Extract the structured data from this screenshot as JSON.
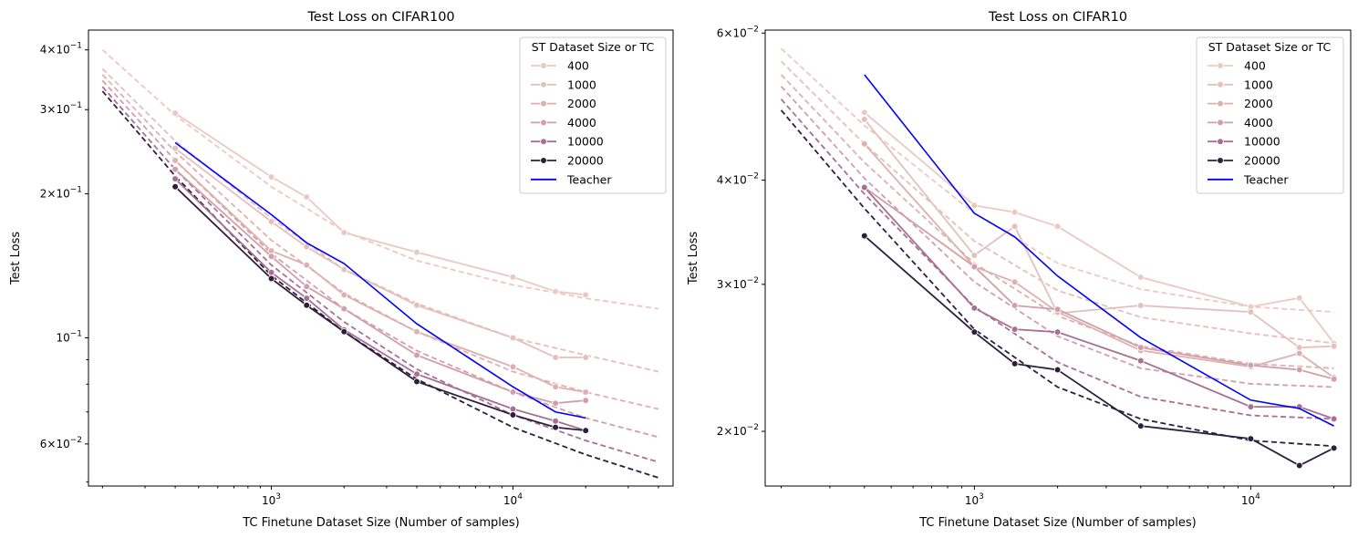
{
  "chart_data": [
    {
      "type": "line",
      "title": "Test Loss on CIFAR100",
      "xlabel": "TC Finetune Dataset Size (Number of samples)",
      "ylabel": "Test Loss",
      "xscale": "log",
      "yscale": "log",
      "xlim": [
        175,
        46000
      ],
      "ylim": [
        0.049,
        0.44
      ],
      "xticks": [
        {
          "value": 1000,
          "base": "10",
          "exp": "3"
        },
        {
          "value": 10000,
          "base": "10",
          "exp": "4"
        }
      ],
      "yticks": [
        {
          "value": 0.06,
          "mant": "6",
          "exp": "−2"
        },
        {
          "value": 0.1,
          "mant": "",
          "exp": "−1"
        },
        {
          "value": 0.2,
          "mant": "2",
          "exp": "−1"
        },
        {
          "value": 0.3,
          "mant": "3",
          "exp": "−1"
        },
        {
          "value": 0.4,
          "mant": "4",
          "exp": "−1"
        }
      ],
      "yticks_minor": [
        0.05,
        0.07,
        0.08,
        0.09
      ],
      "legend": {
        "title": "ST Dataset Size or TC",
        "loc": "upper right",
        "entries": [
          "400",
          "1000",
          "2000",
          "4000",
          "10000",
          "20000",
          "Teacher"
        ]
      },
      "series": [
        {
          "name": "400",
          "color": "#ebc9c2",
          "x": [
            400,
            1000,
            1400,
            2000,
            4000,
            10000,
            15000,
            20000
          ],
          "y": [
            0.295,
            0.217,
            0.197,
            0.166,
            0.151,
            0.134,
            0.125,
            0.123
          ],
          "fit_x": [
            200,
            400,
            1000,
            2000,
            4000,
            10000,
            20000,
            40000
          ],
          "fit_y": [
            0.4,
            0.292,
            0.207,
            0.167,
            0.145,
            0.129,
            0.121,
            0.115
          ]
        },
        {
          "name": "1000",
          "color": "#e5bfbb",
          "x": [
            400,
            1000,
            1400,
            2000,
            4000,
            10000,
            15000,
            20000
          ],
          "y": [
            0.249,
            0.175,
            0.155,
            0.139,
            0.117,
            0.1,
            0.091,
            0.091
          ],
          "fit_x": [
            200,
            400,
            1000,
            2000,
            4000,
            10000,
            20000,
            40000
          ],
          "fit_y": [
            0.365,
            0.258,
            0.178,
            0.139,
            0.118,
            0.1,
            0.092,
            0.085
          ]
        },
        {
          "name": "2000",
          "color": "#deb0b0",
          "x": [
            400,
            1000,
            1400,
            2000,
            4000,
            10000,
            15000,
            20000
          ],
          "y": [
            0.235,
            0.152,
            0.142,
            0.123,
            0.103,
            0.087,
            0.079,
            0.077
          ],
          "fit_x": [
            200,
            400,
            1000,
            2000,
            4000,
            10000,
            20000,
            40000
          ],
          "fit_y": [
            0.355,
            0.245,
            0.16,
            0.124,
            0.103,
            0.085,
            0.077,
            0.071
          ]
        },
        {
          "name": "4000",
          "color": "#d29fa8",
          "x": [
            400,
            1000,
            1400,
            2000,
            4000,
            10000,
            15000,
            20000
          ],
          "y": [
            0.225,
            0.148,
            0.128,
            0.115,
            0.092,
            0.077,
            0.073,
            0.074
          ],
          "fit_x": [
            200,
            400,
            1000,
            2000,
            4000,
            10000,
            20000,
            40000
          ],
          "fit_y": [
            0.345,
            0.235,
            0.15,
            0.115,
            0.094,
            0.077,
            0.068,
            0.062
          ]
        },
        {
          "name": "10000",
          "color": "#a86f92",
          "x": [
            400,
            1000,
            1400,
            2000,
            4000,
            10000,
            15000,
            20000
          ],
          "y": [
            0.215,
            0.137,
            0.121,
            0.104,
            0.084,
            0.071,
            0.067,
            0.064
          ],
          "fit_x": [
            200,
            400,
            1000,
            2000,
            4000,
            10000,
            20000,
            40000
          ],
          "fit_y": [
            0.335,
            0.225,
            0.142,
            0.108,
            0.086,
            0.069,
            0.061,
            0.055
          ]
        },
        {
          "name": "20000",
          "color": "#2d1e3e",
          "x": [
            400,
            1000,
            1400,
            2000,
            4000,
            10000,
            15000,
            20000
          ],
          "y": [
            0.207,
            0.133,
            0.117,
            0.103,
            0.081,
            0.069,
            0.065,
            0.064
          ],
          "fit_x": [
            200,
            400,
            1000,
            2000,
            4000,
            10000,
            20000,
            40000
          ],
          "fit_y": [
            0.328,
            0.218,
            0.135,
            0.103,
            0.082,
            0.065,
            0.057,
            0.051
          ]
        },
        {
          "name": "Teacher",
          "color": "#0000ff",
          "markers": false,
          "x": [
            400,
            1000,
            1400,
            2000,
            4000,
            10000,
            15000,
            20000
          ],
          "y": [
            0.256,
            0.181,
            0.158,
            0.143,
            0.107,
            0.079,
            0.07,
            0.068
          ]
        }
      ]
    },
    {
      "type": "line",
      "title": "Test Loss on CIFAR10",
      "xlabel": "TC Finetune Dataset Size (Number of samples)",
      "ylabel": "Test Loss",
      "xscale": "log",
      "yscale": "log",
      "xlim": [
        175,
        23000
      ],
      "ylim": [
        0.0172,
        0.0605
      ],
      "xticks": [
        {
          "value": 1000,
          "base": "10",
          "exp": "3"
        },
        {
          "value": 10000,
          "base": "10",
          "exp": "4"
        }
      ],
      "yticks": [
        {
          "value": 0.02,
          "mant": "2",
          "exp": "−2"
        },
        {
          "value": 0.03,
          "mant": "3",
          "exp": "−2"
        },
        {
          "value": 0.04,
          "mant": "4",
          "exp": "−2"
        },
        {
          "value": 0.06,
          "mant": "6",
          "exp": "−2"
        }
      ],
      "yticks_minor": [],
      "legend": {
        "title": "ST Dataset Size or TC",
        "loc": "upper right",
        "entries": [
          "400",
          "1000",
          "2000",
          "4000",
          "10000",
          "20000",
          "Teacher"
        ]
      },
      "series": [
        {
          "name": "400",
          "color": "#ebc9c2",
          "x": [
            400,
            1000,
            1400,
            2000,
            4000,
            10000,
            15000,
            20000
          ],
          "y": [
            0.0482,
            0.0373,
            0.0366,
            0.0352,
            0.0306,
            0.0282,
            0.0289,
            0.0255
          ],
          "fit_x": [
            200,
            400,
            1000,
            2000,
            4000,
            10000,
            20000
          ],
          "fit_y": [
            0.0575,
            0.0465,
            0.0365,
            0.0318,
            0.0296,
            0.0282,
            0.0278
          ]
        },
        {
          "name": "1000",
          "color": "#e5bfbb",
          "x": [
            400,
            1000,
            1400,
            2000,
            4000,
            10000,
            15000,
            20000
          ],
          "y": [
            0.0473,
            0.0325,
            0.0352,
            0.0277,
            0.0283,
            0.0278,
            0.0252,
            0.0253
          ],
          "fit_x": [
            200,
            400,
            1000,
            2000,
            4000,
            10000,
            20000
          ],
          "fit_y": [
            0.0555,
            0.0442,
            0.0338,
            0.0295,
            0.0274,
            0.0262,
            0.0255
          ]
        },
        {
          "name": "2000",
          "color": "#deb0b0",
          "x": [
            400,
            1000,
            1400,
            2000,
            4000,
            10000,
            15000,
            20000
          ],
          "y": [
            0.0442,
            0.0315,
            0.0302,
            0.0278,
            0.025,
            0.0239,
            0.0248,
            0.0232
          ],
          "fit_x": [
            200,
            400,
            1000,
            2000,
            4000,
            10000,
            20000
          ],
          "fit_y": [
            0.0535,
            0.042,
            0.0318,
            0.0275,
            0.0253,
            0.0241,
            0.0238
          ]
        },
        {
          "name": "4000",
          "color": "#d29fa8",
          "x": [
            400,
            1000,
            1400,
            2000,
            4000,
            10000,
            15000,
            20000
          ],
          "y": [
            0.0392,
            0.0315,
            0.0283,
            0.028,
            0.0252,
            0.024,
            0.0237,
            0.0231
          ],
          "fit_x": [
            200,
            400,
            1000,
            2000,
            4000,
            10000,
            20000
          ],
          "fit_y": [
            0.0518,
            0.0402,
            0.0302,
            0.026,
            0.0238,
            0.0228,
            0.0226
          ]
        },
        {
          "name": "10000",
          "color": "#a86f92",
          "x": [
            400,
            1000,
            1400,
            2000,
            4000,
            10000,
            15000,
            20000
          ],
          "y": [
            0.0392,
            0.0281,
            0.0265,
            0.0263,
            0.0243,
            0.0214,
            0.0214,
            0.0207
          ],
          "fit_x": [
            200,
            400,
            1000,
            2000,
            4000,
            10000,
            20000
          ],
          "fit_y": [
            0.05,
            0.0385,
            0.0282,
            0.0242,
            0.022,
            0.0209,
            0.0207
          ]
        },
        {
          "name": "20000",
          "color": "#2d1e3e",
          "x": [
            400,
            1000,
            1400,
            2000,
            4000,
            10000,
            15000,
            20000
          ],
          "y": [
            0.0343,
            0.0263,
            0.0241,
            0.0237,
            0.0203,
            0.0196,
            0.0182,
            0.0191
          ],
          "fit_x": [
            200,
            400,
            1000,
            2000,
            4000,
            10000,
            20000
          ],
          "fit_y": [
            0.0485,
            0.037,
            0.0265,
            0.0226,
            0.0207,
            0.0195,
            0.0192
          ]
        },
        {
          "name": "Teacher",
          "color": "#0000ff",
          "markers": false,
          "x": [
            400,
            1000,
            1400,
            2000,
            4000,
            10000,
            15000,
            20000
          ],
          "y": [
            0.0535,
            0.0365,
            0.0342,
            0.0307,
            0.0259,
            0.0218,
            0.0213,
            0.0203
          ]
        }
      ]
    }
  ]
}
